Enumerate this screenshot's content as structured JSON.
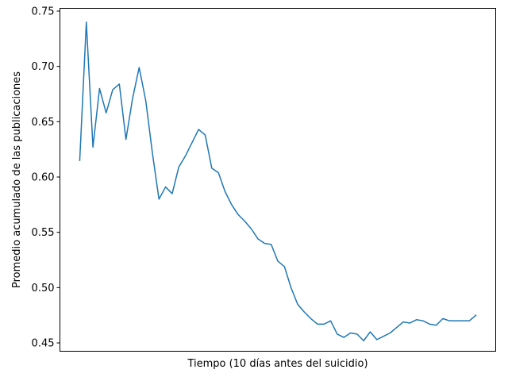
{
  "chart_data": {
    "type": "line",
    "title": "",
    "xlabel": "Tiempo (10 días antes del suicidio)",
    "ylabel": "Promedio acumulado de las publicaciones",
    "x_ticks_shown": false,
    "xlim": [
      -3,
      63
    ],
    "ylim": [
      0.4425,
      0.7525
    ],
    "yticks": [
      0.45,
      0.5,
      0.55,
      0.6,
      0.65,
      0.7,
      0.75
    ],
    "ytick_labels": [
      "0.45",
      "0.50",
      "0.55",
      "0.60",
      "0.65",
      "0.70",
      "0.75"
    ],
    "grid": false,
    "line_color": "#1f77b4",
    "series": [
      {
        "x": [
          0,
          1,
          2,
          3,
          4,
          5,
          6,
          7,
          8,
          9,
          10,
          11,
          12,
          13,
          14,
          15,
          16,
          17,
          18,
          19,
          20,
          21,
          22,
          23,
          24,
          25,
          26,
          27,
          28,
          29,
          30,
          31,
          32,
          33,
          34,
          35,
          36,
          37,
          38,
          39,
          40,
          41,
          42,
          43,
          44,
          45,
          46,
          47,
          48,
          49,
          50,
          51,
          52,
          53,
          54,
          55,
          56,
          57,
          58,
          59,
          60
        ],
        "values": [
          0.615,
          0.74,
          0.627,
          0.68,
          0.658,
          0.679,
          0.684,
          0.634,
          0.671,
          0.699,
          0.669,
          0.622,
          0.58,
          0.591,
          0.585,
          0.609,
          0.619,
          0.631,
          0.643,
          0.638,
          0.608,
          0.604,
          0.587,
          0.575,
          0.566,
          0.56,
          0.553,
          0.544,
          0.54,
          0.539,
          0.524,
          0.519,
          0.5,
          0.485,
          0.478,
          0.472,
          0.467,
          0.467,
          0.47,
          0.458,
          0.455,
          0.459,
          0.458,
          0.452,
          0.46,
          0.453,
          0.456,
          0.459,
          0.464,
          0.469,
          0.468,
          0.471,
          0.47,
          0.467,
          0.466,
          0.472,
          0.47,
          0.47,
          0.47,
          0.47,
          0.475
        ]
      }
    ]
  }
}
